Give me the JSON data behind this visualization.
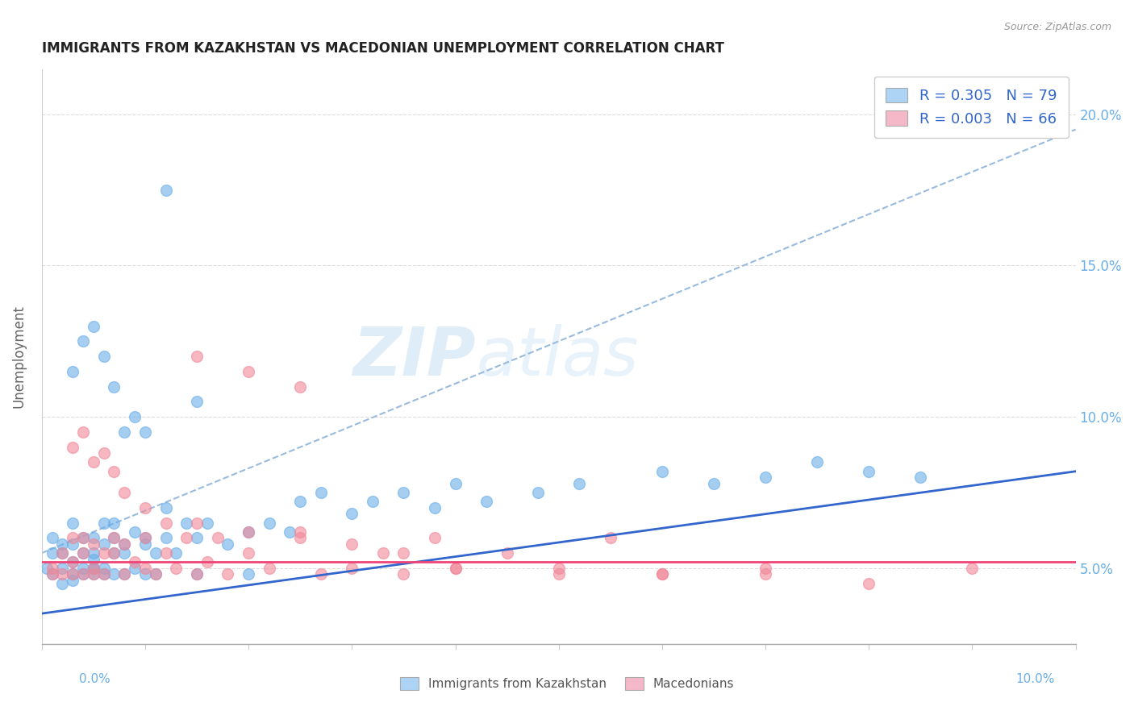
{
  "title": "IMMIGRANTS FROM KAZAKHSTAN VS MACEDONIAN UNEMPLOYMENT CORRELATION CHART",
  "source": "Source: ZipAtlas.com",
  "ylabel": "Unemployment",
  "y_tick_values": [
    0.05,
    0.1,
    0.15,
    0.2
  ],
  "xlim": [
    0.0,
    0.1
  ],
  "ylim": [
    0.025,
    0.215
  ],
  "legend1_label": "R = 0.305   N = 79",
  "legend2_label": "R = 0.003   N = 66",
  "legend1_color": "#aed4f5",
  "legend2_color": "#f5b8c8",
  "scatter1_color": "#6aaee8",
  "scatter2_color": "#f08898",
  "line1_color": "#3366cc",
  "line2_color": "#ee4477",
  "dashed_line_color": "#99bbdd",
  "background_color": "#ffffff",
  "legend_bottom_label1": "Immigrants from Kazakhstan",
  "legend_bottom_label2": "Macedonians",
  "kaz_x": [
    0.0005,
    0.001,
    0.001,
    0.001,
    0.002,
    0.002,
    0.002,
    0.002,
    0.003,
    0.003,
    0.003,
    0.003,
    0.003,
    0.004,
    0.004,
    0.004,
    0.004,
    0.005,
    0.005,
    0.005,
    0.005,
    0.005,
    0.005,
    0.006,
    0.006,
    0.006,
    0.006,
    0.007,
    0.007,
    0.007,
    0.007,
    0.008,
    0.008,
    0.008,
    0.009,
    0.009,
    0.01,
    0.01,
    0.01,
    0.011,
    0.011,
    0.012,
    0.012,
    0.013,
    0.014,
    0.015,
    0.015,
    0.016,
    0.018,
    0.02,
    0.02,
    0.022,
    0.024,
    0.025,
    0.027,
    0.03,
    0.032,
    0.035,
    0.038,
    0.04,
    0.043,
    0.048,
    0.052,
    0.06,
    0.065,
    0.07,
    0.075,
    0.08,
    0.085,
    0.003,
    0.004,
    0.005,
    0.006,
    0.007,
    0.008,
    0.009,
    0.01,
    0.012,
    0.015
  ],
  "kaz_y": [
    0.05,
    0.048,
    0.055,
    0.06,
    0.05,
    0.045,
    0.055,
    0.058,
    0.046,
    0.052,
    0.058,
    0.065,
    0.048,
    0.05,
    0.06,
    0.055,
    0.048,
    0.05,
    0.053,
    0.048,
    0.06,
    0.055,
    0.05,
    0.058,
    0.065,
    0.05,
    0.048,
    0.06,
    0.065,
    0.048,
    0.055,
    0.058,
    0.048,
    0.055,
    0.062,
    0.05,
    0.058,
    0.048,
    0.06,
    0.055,
    0.048,
    0.06,
    0.07,
    0.055,
    0.065,
    0.06,
    0.048,
    0.065,
    0.058,
    0.062,
    0.048,
    0.065,
    0.062,
    0.072,
    0.075,
    0.068,
    0.072,
    0.075,
    0.07,
    0.078,
    0.072,
    0.075,
    0.078,
    0.082,
    0.078,
    0.08,
    0.085,
    0.082,
    0.08,
    0.115,
    0.125,
    0.13,
    0.12,
    0.11,
    0.095,
    0.1,
    0.095,
    0.175,
    0.105
  ],
  "mac_x": [
    0.001,
    0.001,
    0.002,
    0.002,
    0.003,
    0.003,
    0.003,
    0.004,
    0.004,
    0.004,
    0.005,
    0.005,
    0.005,
    0.006,
    0.006,
    0.007,
    0.007,
    0.008,
    0.008,
    0.009,
    0.01,
    0.01,
    0.011,
    0.012,
    0.013,
    0.014,
    0.015,
    0.016,
    0.017,
    0.018,
    0.02,
    0.022,
    0.025,
    0.027,
    0.03,
    0.033,
    0.035,
    0.038,
    0.04,
    0.045,
    0.05,
    0.055,
    0.06,
    0.07,
    0.08,
    0.09,
    0.003,
    0.004,
    0.005,
    0.006,
    0.007,
    0.008,
    0.01,
    0.012,
    0.015,
    0.02,
    0.025,
    0.03,
    0.035,
    0.04,
    0.05,
    0.06,
    0.07,
    0.015,
    0.02,
    0.025
  ],
  "mac_y": [
    0.05,
    0.048,
    0.055,
    0.048,
    0.052,
    0.06,
    0.048,
    0.055,
    0.048,
    0.06,
    0.05,
    0.058,
    0.048,
    0.055,
    0.048,
    0.06,
    0.055,
    0.048,
    0.058,
    0.052,
    0.05,
    0.06,
    0.048,
    0.055,
    0.05,
    0.06,
    0.048,
    0.052,
    0.06,
    0.048,
    0.055,
    0.05,
    0.062,
    0.048,
    0.05,
    0.055,
    0.048,
    0.06,
    0.05,
    0.055,
    0.05,
    0.06,
    0.048,
    0.05,
    0.045,
    0.05,
    0.09,
    0.095,
    0.085,
    0.088,
    0.082,
    0.075,
    0.07,
    0.065,
    0.065,
    0.062,
    0.06,
    0.058,
    0.055,
    0.05,
    0.048,
    0.048,
    0.048,
    0.12,
    0.115,
    0.11
  ],
  "kaz_line_x0": 0.0,
  "kaz_line_y0": 0.035,
  "kaz_line_x1": 0.1,
  "kaz_line_y1": 0.082,
  "mac_line_x0": 0.0,
  "mac_line_y0": 0.052,
  "mac_line_x1": 0.1,
  "mac_line_y1": 0.052,
  "dash_line_x0": 0.0,
  "dash_line_y0": 0.055,
  "dash_line_x1": 0.1,
  "dash_line_y1": 0.195
}
